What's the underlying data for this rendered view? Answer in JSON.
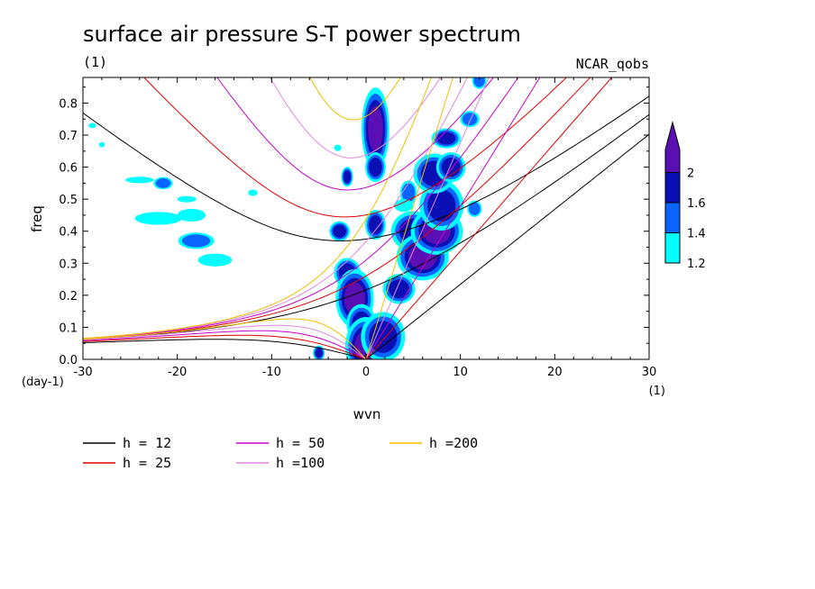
{
  "chart_data": {
    "type": "heatmap",
    "title": "surface air pressure S-T power spectrum",
    "subtitle_left": "(1)",
    "subtitle_right": "NCAR_qobs",
    "xlabel": "wvn",
    "ylabel": "freq",
    "x_unit": "(1)",
    "y_unit": "(day-1)",
    "xlim": [
      -30,
      30
    ],
    "ylim": [
      0,
      0.88
    ],
    "xticks": [
      "-30",
      "-20",
      "-10",
      "0",
      "10",
      "20",
      "30"
    ],
    "xtick_values": [
      -30,
      -20,
      -10,
      0,
      10,
      20,
      30
    ],
    "yticks": [
      "0.0",
      "0.1",
      "0.2",
      "0.3",
      "0.4",
      "0.5",
      "0.6",
      "0.7",
      "0.8"
    ],
    "ytick_values": [
      0,
      0.1,
      0.2,
      0.3,
      0.4,
      0.5,
      0.6,
      0.7,
      0.8
    ],
    "colorbar": {
      "levels": [
        "1.2",
        "1.4",
        "1.6",
        "2"
      ],
      "level_values": [
        1.2,
        1.4,
        1.6,
        2.0
      ],
      "colors": [
        "#00ffff",
        "#0a64ff",
        "#0a10b4",
        "#5a0fb4"
      ]
    },
    "dispersion_curves": [
      {
        "label": "h = 12",
        "h": 12,
        "color": "#000000"
      },
      {
        "label": "h = 25",
        "h": 25,
        "color": "#e00000"
      },
      {
        "label": "h = 50",
        "h": 50,
        "color": "#c800c8"
      },
      {
        "label": "h =100",
        "h": 100,
        "color": "#e088e0"
      },
      {
        "label": "h =200",
        "h": 200,
        "color": "#f0c000"
      }
    ],
    "power_blobs": [
      {
        "x": 1.0,
        "y": 0.72,
        "rx": 0.8,
        "ry": 0.07,
        "level": 2.0
      },
      {
        "x": 1.0,
        "y": 0.6,
        "rx": 0.7,
        "ry": 0.03,
        "level": 1.8
      },
      {
        "x": 1.0,
        "y": 0.42,
        "rx": 0.7,
        "ry": 0.03,
        "level": 1.8
      },
      {
        "x": -2.8,
        "y": 0.4,
        "rx": 0.7,
        "ry": 0.02,
        "level": 1.8
      },
      {
        "x": -2.0,
        "y": 0.57,
        "rx": 0.4,
        "ry": 0.02,
        "level": 1.6
      },
      {
        "x": -2.0,
        "y": 0.27,
        "rx": 0.9,
        "ry": 0.03,
        "level": 1.8
      },
      {
        "x": -1.2,
        "y": 0.19,
        "rx": 1.1,
        "ry": 0.05,
        "level": 2.0
      },
      {
        "x": -0.5,
        "y": 0.11,
        "rx": 1.0,
        "ry": 0.04,
        "level": 1.8
      },
      {
        "x": 0.0,
        "y": 0.04,
        "rx": 1.2,
        "ry": 0.05,
        "level": 2.0
      },
      {
        "x": 1.8,
        "y": 0.07,
        "rx": 1.5,
        "ry": 0.05,
        "level": 1.8
      },
      {
        "x": 3.5,
        "y": 0.22,
        "rx": 1.1,
        "ry": 0.03,
        "level": 1.8
      },
      {
        "x": 5.0,
        "y": 0.4,
        "rx": 1.5,
        "ry": 0.04,
        "level": 1.6
      },
      {
        "x": 6.0,
        "y": 0.32,
        "rx": 1.5,
        "ry": 0.04,
        "level": 2.0
      },
      {
        "x": 7.5,
        "y": 0.4,
        "rx": 1.5,
        "ry": 0.04,
        "level": 2.0
      },
      {
        "x": 8.0,
        "y": 0.48,
        "rx": 1.5,
        "ry": 0.05,
        "level": 1.8
      },
      {
        "x": 7.2,
        "y": 0.58,
        "rx": 1.4,
        "ry": 0.04,
        "level": 1.8
      },
      {
        "x": 9.0,
        "y": 0.6,
        "rx": 1.0,
        "ry": 0.03,
        "level": 1.6
      },
      {
        "x": 8.5,
        "y": 0.69,
        "rx": 1.0,
        "ry": 0.02,
        "level": 1.6
      },
      {
        "x": 11.0,
        "y": 0.75,
        "rx": 0.8,
        "ry": 0.02,
        "level": 1.4
      },
      {
        "x": 12.0,
        "y": 0.87,
        "rx": 0.6,
        "ry": 0.02,
        "level": 1.4
      },
      {
        "x": 11.5,
        "y": 0.47,
        "rx": 0.6,
        "ry": 0.02,
        "level": 1.4
      },
      {
        "x": 4.5,
        "y": 0.52,
        "rx": 0.7,
        "ry": 0.03,
        "level": 1.4
      },
      {
        "x": -5.0,
        "y": 0.02,
        "rx": 0.4,
        "ry": 0.015,
        "level": 1.6
      },
      {
        "x": -22.0,
        "y": 0.44,
        "rx": 2.5,
        "ry": 0.02,
        "level": 1.2
      },
      {
        "x": -18.5,
        "y": 0.45,
        "rx": 1.5,
        "ry": 0.02,
        "level": 1.2
      },
      {
        "x": -18.0,
        "y": 0.37,
        "rx": 1.5,
        "ry": 0.02,
        "level": 1.4
      },
      {
        "x": -16.0,
        "y": 0.31,
        "rx": 1.8,
        "ry": 0.02,
        "level": 1.2
      },
      {
        "x": -24.0,
        "y": 0.56,
        "rx": 1.5,
        "ry": 0.01,
        "level": 1.2
      },
      {
        "x": -21.5,
        "y": 0.55,
        "rx": 0.8,
        "ry": 0.015,
        "level": 1.4
      },
      {
        "x": -19.0,
        "y": 0.5,
        "rx": 1.0,
        "ry": 0.01,
        "level": 1.2
      },
      {
        "x": -29.0,
        "y": 0.73,
        "rx": 0.4,
        "ry": 0.008,
        "level": 1.2
      },
      {
        "x": -28.0,
        "y": 0.67,
        "rx": 0.3,
        "ry": 0.008,
        "level": 1.2
      },
      {
        "x": -12.0,
        "y": 0.52,
        "rx": 0.5,
        "ry": 0.01,
        "level": 1.2
      },
      {
        "x": -3.0,
        "y": 0.66,
        "rx": 0.4,
        "ry": 0.01,
        "level": 1.2
      },
      {
        "x": 4.0,
        "y": 0.48,
        "rx": 1.0,
        "ry": 0.02,
        "level": 1.2
      }
    ]
  }
}
